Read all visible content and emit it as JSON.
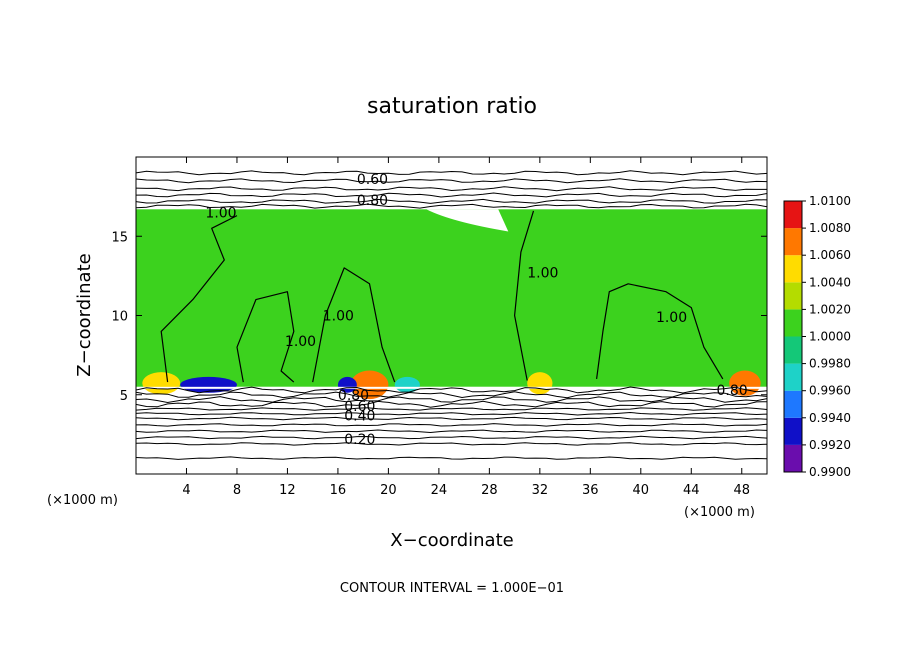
{
  "chart_data": {
    "type": "heatmap",
    "title": "saturation ratio",
    "xlabel": "X−coordinate",
    "ylabel": "Z−coordinate",
    "x_unit_left": "(×1000 m)",
    "x_unit_right": "(×1000 m)",
    "footer": "CONTOUR INTERVAL = 1.000E−01",
    "xlim": [
      0,
      50
    ],
    "ylim": [
      0,
      20
    ],
    "x_ticks": [
      4,
      8,
      12,
      16,
      20,
      24,
      28,
      32,
      36,
      40,
      44,
      48
    ],
    "x_tick_labels": [
      "4",
      "8",
      "12",
      "16",
      "20",
      "24",
      "28",
      "32",
      "36",
      "40",
      "44",
      "48"
    ],
    "y_ticks": [
      5,
      10,
      15
    ],
    "y_tick_labels": [
      "5",
      "10",
      "15"
    ],
    "colorbar": {
      "levels": [
        0.99,
        0.992,
        0.994,
        0.996,
        0.998,
        1.0,
        1.002,
        1.004,
        1.006,
        1.008,
        1.01
      ],
      "labels": [
        "0.9900",
        "0.9920",
        "0.9940",
        "0.9960",
        "0.9980",
        "1.0000",
        "1.0020",
        "1.0040",
        "1.0060",
        "1.0080",
        "1.0100"
      ],
      "colors": [
        "#6a0dad",
        "#1010c8",
        "#1e78ff",
        "#1ed2c8",
        "#14c878",
        "#3cd21e",
        "#b4dc00",
        "#ffdc00",
        "#ff7800",
        "#e61414",
        "#f08c8c"
      ]
    },
    "field": {
      "cloud_layer_z": [
        5.5,
        16.7
      ],
      "background_value": 1.0005,
      "features": [
        {
          "type": "band",
          "x": [
            0.5,
            3.5
          ],
          "z": [
            5.6,
            6.3
          ],
          "value": 1.0055
        },
        {
          "type": "band",
          "x": [
            3.5,
            8.0
          ],
          "z": [
            5.5,
            6.0
          ],
          "value": 0.9935
        },
        {
          "type": "band",
          "x": [
            17.0,
            20.0
          ],
          "z": [
            5.5,
            6.4
          ],
          "value": 1.0075
        },
        {
          "type": "band",
          "x": [
            16.0,
            17.5
          ],
          "z": [
            5.5,
            6.0
          ],
          "value": 0.9935
        },
        {
          "type": "band",
          "x": [
            20.5,
            22.5
          ],
          "z": [
            5.5,
            6.0
          ],
          "value": 0.996
        },
        {
          "type": "band",
          "x": [
            31.0,
            33.0
          ],
          "z": [
            5.6,
            6.3
          ],
          "value": 1.004
        },
        {
          "type": "band",
          "x": [
            47.0,
            49.5
          ],
          "z": [
            5.6,
            6.4
          ],
          "value": 1.006
        }
      ],
      "clear_patch_x": [
        23.0,
        29.5
      ],
      "clear_patch_z": [
        15.3,
        16.7
      ]
    },
    "contours": [
      {
        "label": "0.60",
        "label_x": 17.5,
        "label_z": 18.6
      },
      {
        "label": "0.80",
        "label_x": 17.5,
        "label_z": 17.3
      },
      {
        "label": "1.00",
        "label_x": 5.5,
        "label_z": 16.5
      },
      {
        "label": "1.00",
        "label_x": 11.8,
        "label_z": 8.4
      },
      {
        "label": "1.00",
        "label_x": 14.8,
        "label_z": 10.0
      },
      {
        "label": "1.00",
        "label_x": 31.0,
        "label_z": 12.7
      },
      {
        "label": "1.00",
        "label_x": 41.2,
        "label_z": 9.9
      },
      {
        "label": "0.80",
        "label_x": 16.0,
        "label_z": 5.0
      },
      {
        "label": "0.60",
        "label_x": 16.5,
        "label_z": 4.3
      },
      {
        "label": "0.40",
        "label_x": 16.5,
        "label_z": 3.7
      },
      {
        "label": "0.20",
        "label_x": 16.5,
        "label_z": 2.2
      },
      {
        "label": "0.80",
        "label_x": 46.0,
        "label_z": 5.3
      }
    ]
  }
}
